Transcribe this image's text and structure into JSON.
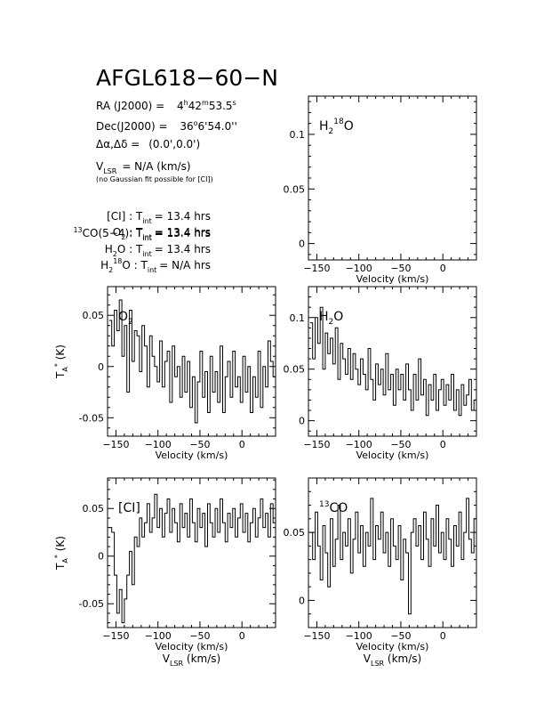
{
  "header": {
    "title": "AFGL618−60−N",
    "ra": {
      "label": "RA (J2000) =",
      "h": "4",
      "hs": "h",
      "m": "42",
      "ms": "m",
      "s": "53.5",
      "ss": "s"
    },
    "dec": {
      "label": "Dec(J2000) =",
      "d": "36",
      "ds": "o",
      "rest": "6'54.0''"
    },
    "offset": {
      "label": "Δα,Δδ =",
      "value": "(0.0',0.0')"
    },
    "vlsr": {
      "v": "V",
      "sub": "LSR",
      "rest": "= N/A  (km/s)"
    },
    "note": "(no Gaussian fit possible for [CI])",
    "tint": [
      {
        "pre": "",
        "sup": "",
        "name": "[CI]",
        "sub": "",
        "name2": "",
        "post": " : ",
        "t": "T",
        "tsub": "int",
        "val": "= 13.4 hrs"
      },
      {
        "pre": "",
        "sup": "13",
        "name": "CO(5−4)",
        "sub": "",
        "name2": "",
        "post": ": ",
        "t": "T",
        "tsub": "int",
        "val": "= 13.4 hrs"
      },
      {
        "pre": "",
        "sup": "",
        "name": "O",
        "sub": "2",
        "name2": "",
        "post": " : ",
        "t": "T",
        "tsub": "int",
        "val": "= 13.4 hrs"
      },
      {
        "pre": "",
        "sup": "",
        "name": "H",
        "sub": "2",
        "name2": "O",
        "post": " : ",
        "t": "T",
        "tsub": "int",
        "val": "= 13.4 hrs"
      },
      {
        "pre": "H",
        "sup": "",
        "name": "",
        "sub": "2",
        "name2": "",
        "post": "",
        "t": "T",
        "tsub": "int",
        "val": "= N/A  hrs",
        "h18": true
      }
    ]
  },
  "chart_data": [
    {
      "id": "h218o",
      "type": "line",
      "line_label": "H2 18O",
      "xlim": [
        -160,
        40
      ],
      "ylim": [
        -0.015,
        0.135
      ],
      "xticks": [
        -150,
        -100,
        -50,
        0
      ],
      "yticks": [
        0,
        0.05,
        0.1
      ],
      "ytick_labels": [
        "0",
        "0.05",
        "0.1"
      ],
      "xlabel": "Velocity (km/s)",
      "ylabel": "",
      "x": [],
      "y": []
    },
    {
      "id": "o2",
      "type": "line",
      "line_label": "O2",
      "xlim": [
        -160,
        40
      ],
      "ylim": [
        -0.068,
        0.078
      ],
      "xticks": [
        -150,
        -100,
        -50,
        0
      ],
      "yticks": [
        -0.05,
        0,
        0.05
      ],
      "ytick_labels": [
        "-0.05",
        "0",
        "0.05"
      ],
      "xlabel": "Velocity (km/s)",
      "ylabel": "TA* (K)",
      "x": [
        -158,
        -155,
        -152,
        -149,
        -146,
        -143,
        -140,
        -137,
        -134,
        -131,
        -128,
        -125,
        -122,
        -119,
        -116,
        -113,
        -110,
        -107,
        -104,
        -101,
        -98,
        -95,
        -92,
        -89,
        -86,
        -83,
        -80,
        -77,
        -74,
        -71,
        -68,
        -65,
        -62,
        -59,
        -56,
        -53,
        -50,
        -47,
        -44,
        -41,
        -38,
        -35,
        -32,
        -29,
        -26,
        -23,
        -20,
        -17,
        -14,
        -11,
        -8,
        -5,
        -2,
        1,
        4,
        7,
        10,
        13,
        16,
        19,
        22,
        25,
        28,
        31,
        34,
        37,
        40
      ],
      "y": [
        0.045,
        0.02,
        0.055,
        0.035,
        0.065,
        0.01,
        0.04,
        -0.025,
        0.055,
        0.005,
        0.035,
        0.03,
        -0.005,
        0.04,
        0.02,
        -0.02,
        0.03,
        0.01,
        0.0,
        -0.015,
        0.025,
        -0.02,
        0.005,
        0.015,
        -0.035,
        0.02,
        -0.01,
        0.0,
        -0.03,
        0.01,
        -0.025,
        0.005,
        -0.04,
        -0.01,
        -0.055,
        -0.015,
        0.015,
        -0.03,
        -0.005,
        -0.045,
        0.01,
        -0.025,
        -0.005,
        -0.035,
        0.02,
        -0.045,
        -0.01,
        0.005,
        -0.03,
        0.015,
        -0.02,
        -0.01,
        -0.035,
        0.01,
        -0.025,
        0.0,
        -0.045,
        -0.01,
        -0.03,
        0.015,
        -0.04,
        0.0,
        -0.02,
        0.025,
        0.005,
        -0.01,
        0.03
      ]
    },
    {
      "id": "h2o",
      "type": "line",
      "line_label": "H2O",
      "xlim": [
        -160,
        40
      ],
      "ylim": [
        -0.015,
        0.13
      ],
      "xticks": [
        -150,
        -100,
        -50,
        0
      ],
      "yticks": [
        0,
        0.05,
        0.1
      ],
      "ytick_labels": [
        "0",
        "0.05",
        "0.1"
      ],
      "xlabel": "Velocity (km/s)",
      "ylabel": "",
      "x": [
        -158,
        -155,
        -152,
        -149,
        -146,
        -143,
        -140,
        -137,
        -134,
        -131,
        -128,
        -125,
        -122,
        -119,
        -116,
        -113,
        -110,
        -107,
        -104,
        -101,
        -98,
        -95,
        -92,
        -89,
        -86,
        -83,
        -80,
        -77,
        -74,
        -71,
        -68,
        -65,
        -62,
        -59,
        -56,
        -53,
        -50,
        -47,
        -44,
        -41,
        -38,
        -35,
        -32,
        -29,
        -26,
        -23,
        -20,
        -17,
        -14,
        -11,
        -8,
        -5,
        -2,
        1,
        4,
        7,
        10,
        13,
        16,
        19,
        22,
        25,
        28,
        31,
        34,
        37,
        40
      ],
      "y": [
        0.095,
        0.06,
        0.1,
        0.075,
        0.11,
        0.05,
        0.085,
        0.065,
        0.08,
        0.055,
        0.09,
        0.04,
        0.075,
        0.06,
        0.045,
        0.07,
        0.04,
        0.065,
        0.05,
        0.035,
        0.06,
        0.045,
        0.03,
        0.07,
        0.04,
        0.02,
        0.055,
        0.035,
        0.05,
        0.025,
        0.065,
        0.03,
        0.045,
        0.015,
        0.05,
        0.03,
        0.045,
        0.02,
        0.055,
        0.03,
        0.01,
        0.045,
        0.02,
        0.06,
        0.025,
        0.04,
        0.005,
        0.035,
        0.02,
        0.045,
        0.01,
        0.03,
        0.04,
        0.015,
        0.035,
        0.02,
        0.045,
        0.01,
        0.03,
        0.005,
        0.035,
        0.015,
        0.025,
        0.04,
        0.01,
        0.02,
        0.03
      ]
    },
    {
      "id": "ci",
      "type": "line",
      "line_label": "[CI]",
      "xlim": [
        -160,
        40
      ],
      "ylim": [
        -0.075,
        0.082
      ],
      "xticks": [
        -150,
        -100,
        -50,
        0
      ],
      "yticks": [
        -0.05,
        0,
        0.05
      ],
      "ytick_labels": [
        "-0.05",
        "0",
        "0.05"
      ],
      "xlabel": "Velocity (km/s)",
      "xlabel2": "VLSR (km/s)",
      "ylabel": "TA* (K)",
      "x": [
        -158,
        -155,
        -152,
        -149,
        -146,
        -143,
        -140,
        -137,
        -134,
        -131,
        -128,
        -125,
        -122,
        -119,
        -116,
        -113,
        -110,
        -107,
        -104,
        -101,
        -98,
        -95,
        -92,
        -89,
        -86,
        -83,
        -80,
        -77,
        -74,
        -71,
        -68,
        -65,
        -62,
        -59,
        -56,
        -53,
        -50,
        -47,
        -44,
        -41,
        -38,
        -35,
        -32,
        -29,
        -26,
        -23,
        -20,
        -17,
        -14,
        -11,
        -8,
        -5,
        -2,
        1,
        4,
        7,
        10,
        13,
        16,
        19,
        22,
        25,
        28,
        31,
        34,
        37,
        40
      ],
      "y": [
        0.03,
        0.025,
        -0.02,
        -0.06,
        -0.035,
        -0.07,
        -0.045,
        -0.02,
        0.005,
        -0.03,
        0.02,
        0.01,
        0.04,
        0.02,
        0.035,
        0.055,
        0.025,
        0.04,
        0.065,
        0.03,
        0.05,
        0.02,
        0.045,
        0.06,
        0.025,
        0.05,
        0.035,
        0.015,
        0.055,
        0.03,
        0.045,
        0.02,
        0.06,
        0.035,
        0.015,
        0.05,
        0.03,
        0.045,
        0.01,
        0.055,
        0.035,
        0.02,
        0.05,
        0.025,
        0.06,
        0.035,
        0.015,
        0.045,
        0.03,
        0.05,
        0.02,
        0.04,
        0.055,
        0.025,
        0.045,
        0.015,
        0.035,
        0.05,
        0.02,
        0.04,
        0.06,
        0.03,
        0.045,
        0.02,
        0.055,
        0.035,
        0.05
      ]
    },
    {
      "id": "13co",
      "type": "line",
      "line_label": "13CO",
      "xlim": [
        -160,
        40
      ],
      "ylim": [
        -0.02,
        0.09
      ],
      "xticks": [
        -150,
        -100,
        -50,
        0
      ],
      "yticks": [
        0,
        0.05
      ],
      "ytick_labels": [
        "0",
        "0.05"
      ],
      "xlabel": "Velocity (km/s)",
      "xlabel2": "VLSR (km/s)",
      "ylabel": "",
      "x": [
        -158,
        -155,
        -152,
        -149,
        -146,
        -143,
        -140,
        -137,
        -134,
        -131,
        -128,
        -125,
        -122,
        -119,
        -116,
        -113,
        -110,
        -107,
        -104,
        -101,
        -98,
        -95,
        -92,
        -89,
        -86,
        -83,
        -80,
        -77,
        -74,
        -71,
        -68,
        -65,
        -62,
        -59,
        -56,
        -53,
        -50,
        -47,
        -44,
        -41,
        -38,
        -35,
        -32,
        -29,
        -26,
        -23,
        -20,
        -17,
        -14,
        -11,
        -8,
        -5,
        -2,
        1,
        4,
        7,
        10,
        13,
        16,
        19,
        22,
        25,
        28,
        31,
        34,
        37,
        40
      ],
      "y": [
        0.05,
        0.03,
        0.065,
        0.04,
        0.015,
        0.055,
        0.035,
        0.01,
        0.06,
        0.025,
        0.045,
        0.07,
        0.03,
        0.05,
        0.04,
        0.06,
        0.02,
        0.045,
        0.065,
        0.035,
        0.055,
        0.025,
        0.05,
        0.04,
        0.075,
        0.03,
        0.055,
        0.045,
        0.065,
        0.035,
        0.05,
        0.025,
        0.06,
        0.04,
        0.03,
        0.055,
        0.015,
        0.045,
        0.035,
        -0.01,
        0.05,
        0.06,
        0.04,
        0.055,
        0.03,
        0.065,
        0.045,
        0.025,
        0.06,
        0.04,
        0.07,
        0.035,
        0.05,
        0.03,
        0.06,
        0.045,
        0.025,
        0.055,
        0.04,
        0.065,
        0.03,
        0.05,
        0.075,
        0.045,
        0.035,
        0.06,
        0.05
      ]
    }
  ]
}
